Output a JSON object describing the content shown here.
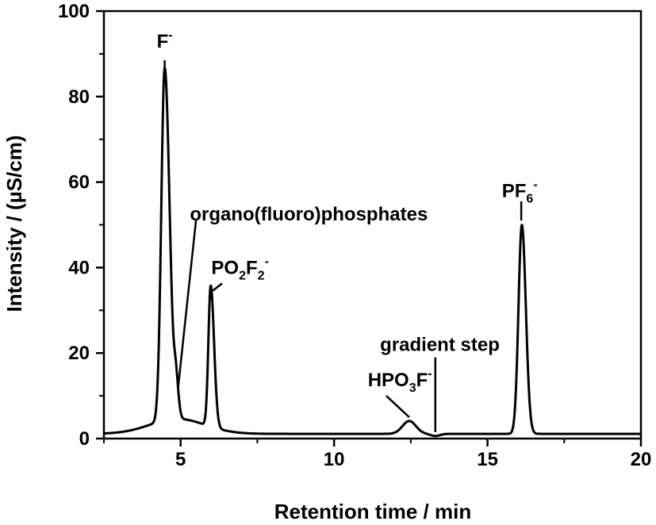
{
  "chart_data": {
    "type": "line",
    "title": "",
    "xlabel": "Retention time / min",
    "ylabel": "Intensity / (µS/cm)",
    "xlim": [
      2.5,
      20
    ],
    "ylim": [
      0,
      100
    ],
    "x_ticks": [
      5,
      10,
      15,
      20
    ],
    "y_ticks": [
      0,
      20,
      40,
      60,
      80,
      100
    ],
    "x_minor_ticks": [
      2.5,
      7.5,
      12.5,
      17.5
    ],
    "y_minor_ticks": [
      10,
      30,
      50,
      70,
      90
    ],
    "grid": false,
    "legend": "none",
    "line_color": "#000000",
    "baseline": 1.1,
    "series": [
      {
        "peaks": [
          {
            "center": 4.48,
            "height": 82.5,
            "left_width": 0.11,
            "right_width": 0.16
          },
          {
            "center": 4.85,
            "height": 7.5,
            "left_width": 0.06,
            "right_width": 0.08
          },
          {
            "center": 5.98,
            "height": 33.0,
            "left_width": 0.075,
            "right_width": 0.11
          },
          {
            "center": 12.45,
            "height": 3.0,
            "left_width": 0.22,
            "right_width": 0.22
          },
          {
            "center": 16.12,
            "height": 48.9,
            "left_width": 0.11,
            "right_width": 0.13
          }
        ],
        "shoulders": [
          {
            "center": 4.9,
            "height": 3.5,
            "width": 0.9
          },
          {
            "center": 13.3,
            "height": -0.5,
            "width": 0.15
          }
        ]
      }
    ],
    "annotations": [
      {
        "id": "fluoride",
        "parts": [
          {
            "t": "F"
          },
          {
            "t": "-",
            "sup": true
          }
        ],
        "x": 4.48,
        "y": 91.5,
        "line_from": [
          4.48,
          88.5
        ],
        "line_to": [
          4.48,
          84.5
        ]
      },
      {
        "id": "organo",
        "parts": [
          {
            "t": "organo(fluoro)phosphates"
          }
        ],
        "x": 5.3,
        "y": 51.0,
        "line_from": [
          5.5,
          51.0
        ],
        "line_to": [
          4.92,
          12.0
        ]
      },
      {
        "id": "po2f2",
        "parts": [
          {
            "t": "PO"
          },
          {
            "t": "2",
            "sub": true
          },
          {
            "t": "F"
          },
          {
            "t": "2",
            "sub": true
          },
          {
            "t": "-",
            "sup": true
          }
        ],
        "x": 6.0,
        "y": 38.5,
        "line_from": [
          6.35,
          36.3
        ],
        "line_to": [
          6.05,
          34.6
        ]
      },
      {
        "id": "hpo3f",
        "parts": [
          {
            "t": "HPO"
          },
          {
            "t": "3",
            "sub": true
          },
          {
            "t": "F"
          },
          {
            "t": "-",
            "sup": true
          }
        ],
        "x": 11.1,
        "y": 12.2,
        "line_from": [
          11.7,
          10.0
        ],
        "line_to": [
          12.45,
          5.0
        ]
      },
      {
        "id": "gradient",
        "parts": [
          {
            "t": "gradient step"
          }
        ],
        "x": 11.5,
        "y": 20.5,
        "line_from": [
          13.3,
          19.0
        ],
        "line_to": [
          13.3,
          1.5
        ]
      },
      {
        "id": "pf6",
        "parts": [
          {
            "t": "PF"
          },
          {
            "t": "6",
            "sub": true
          },
          {
            "t": "-",
            "sup": true
          }
        ],
        "x": 16.05,
        "y": 56.5,
        "line_from": [
          16.1,
          55.5
        ],
        "line_to": [
          16.1,
          51.0
        ]
      }
    ]
  }
}
